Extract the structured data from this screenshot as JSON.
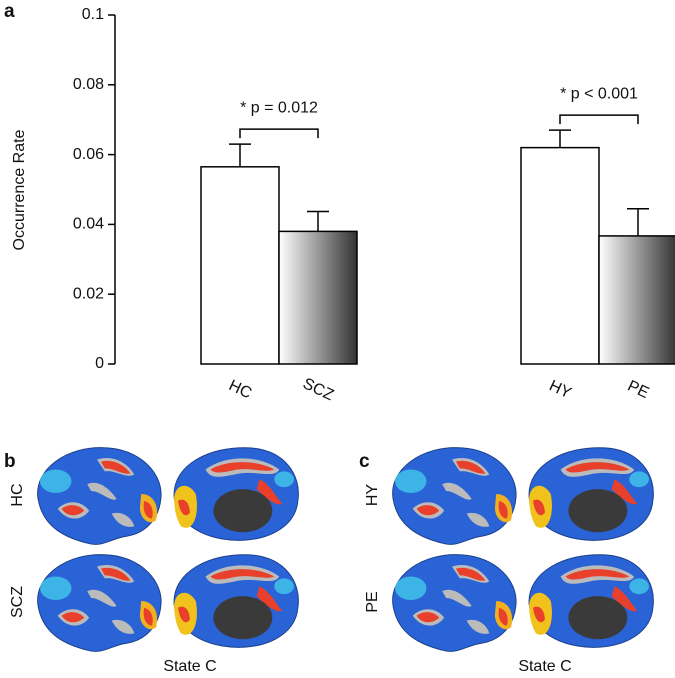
{
  "chart_data": {
    "type": "bar",
    "panel_label": "a",
    "y_label": "Occurrence Rate",
    "categories": [
      "HC",
      "SCZ",
      "HY",
      "PE"
    ],
    "values": [
      0.0565,
      0.038,
      0.062,
      0.0367
    ],
    "errors": [
      0.0065,
      0.0057,
      0.005,
      0.0078
    ],
    "colors": [
      "#ffffff",
      "#333333",
      "#ffffff",
      "#333333"
    ],
    "annotations": [
      "* p = 0.012",
      "* p < 0.001"
    ],
    "ylim": [
      0,
      0.1
    ],
    "yticks": [
      0,
      0.02,
      0.04,
      0.06,
      0.08,
      0.1
    ],
    "grid": false
  },
  "panels": [
    {
      "label": "b",
      "rows": [
        "HC",
        "SCZ"
      ],
      "caption": "State C"
    },
    {
      "label": "c",
      "rows": [
        "HY",
        "PE"
      ],
      "caption": "State C"
    }
  ]
}
